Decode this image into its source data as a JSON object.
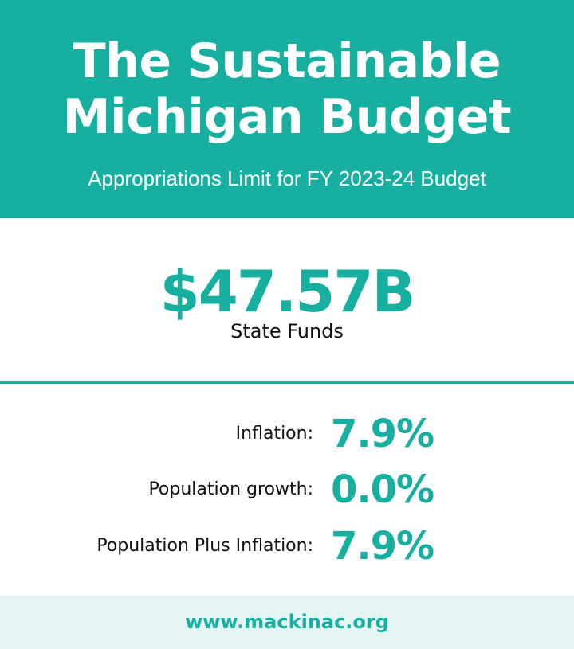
{
  "header": {
    "title_lines": [
      "The Sustainable",
      "Michigan Budget"
    ],
    "subtitle": "Appropriations Limit for FY 2023-24 Budget"
  },
  "headline": {
    "value": "$47.57B",
    "label": "State Funds"
  },
  "stats": [
    {
      "label": "Inflation:",
      "value": "7.9%"
    },
    {
      "label": "Population growth:",
      "value": "0.0%"
    },
    {
      "label": "Population Plus Inflation:",
      "value": "7.9%"
    }
  ],
  "footer": {
    "url": "www.mackinac.org"
  },
  "colors": {
    "accent": "#17b0a0",
    "footer_bg": "#e4f5f4",
    "text": "#111111",
    "background": "#ffffff"
  }
}
